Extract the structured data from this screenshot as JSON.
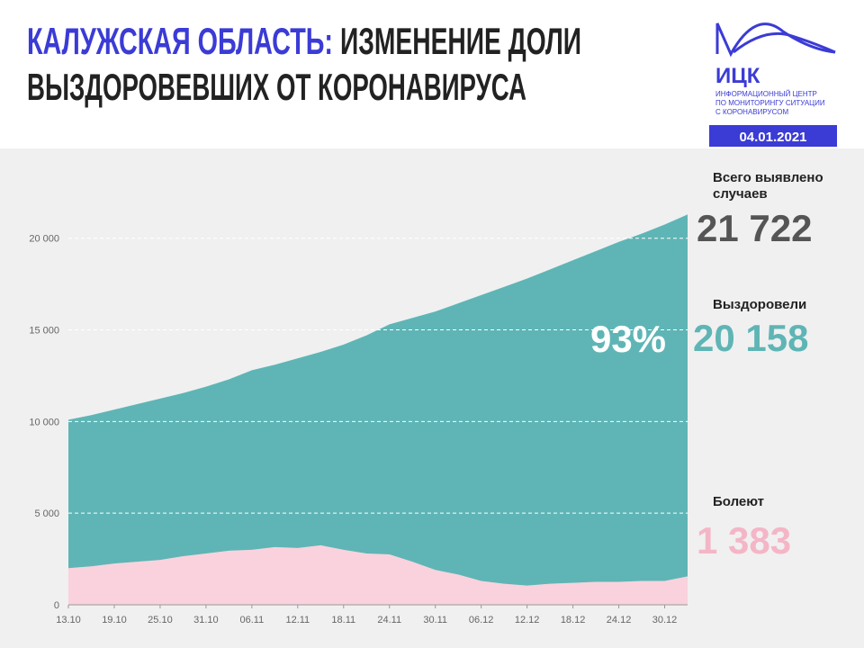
{
  "header": {
    "title_region": "КАЛУЖСКАЯ ОБЛАСТЬ:",
    "title_line1_rest": "ИЗМЕНЕНИЕ ДОЛИ",
    "title_line2": "ВЫЗДОРОВЕВШИХ ОТ КОРОНАВИРУСА",
    "logo_name": "ИЦК",
    "logo_text": [
      "ИНФОРМАЦИОННЫЙ ЦЕНТР",
      "ПО МОНИТОРИНГУ СИТУАЦИИ",
      "С КОРОНАВИРУСОМ"
    ],
    "date": "04.01.2021"
  },
  "stats": {
    "total_label": [
      "Всего выявлено",
      "случаев"
    ],
    "total": "21 722",
    "recovered": "20 158",
    "recovered_share": "93%",
    "active": "1 383"
  },
  "chart_data": {
    "type": "area",
    "stacked": true,
    "categories": [
      "13.10",
      null,
      "19.10",
      null,
      "25.10",
      null,
      "31.10",
      null,
      "06.11",
      null,
      "12.11",
      null,
      "18.11",
      null,
      "24.11",
      null,
      "30.11",
      null,
      "06.12",
      null,
      "12.12",
      null,
      "18.12",
      null,
      "24.12",
      null,
      "30.12",
      null
    ],
    "series": [
      {
        "name": "Болеют",
        "color": "#f9d2dd",
        "values": [
          2000,
          2100,
          2250,
          2350,
          2450,
          2650,
          2800,
          2950,
          3000,
          3150,
          3100,
          3250,
          3000,
          2800,
          2750,
          2350,
          1900,
          1650,
          1300,
          1150,
          1050,
          1150,
          1200,
          1250,
          1250,
          1300,
          1300,
          1550
        ]
      },
      {
        "name": "Выздоровели",
        "color": "#5fb5b5",
        "values": [
          8100,
          8250,
          8400,
          8600,
          8800,
          8900,
          9100,
          9350,
          9800,
          9950,
          10350,
          10550,
          11200,
          11900,
          12550,
          13300,
          14100,
          14800,
          15600,
          16200,
          16750,
          17150,
          17600,
          18050,
          18550,
          18950,
          19450,
          19750
        ]
      }
    ],
    "ylim": [
      0,
      22000
    ],
    "yticks": [
      0,
      {
        "value": 5000,
        "label": "5 000"
      },
      {
        "value": 10000,
        "label": "10 000"
      },
      {
        "value": 15000,
        "label": "15 000"
      },
      {
        "value": 20000,
        "label": "20 000"
      }
    ],
    "grid": true
  }
}
